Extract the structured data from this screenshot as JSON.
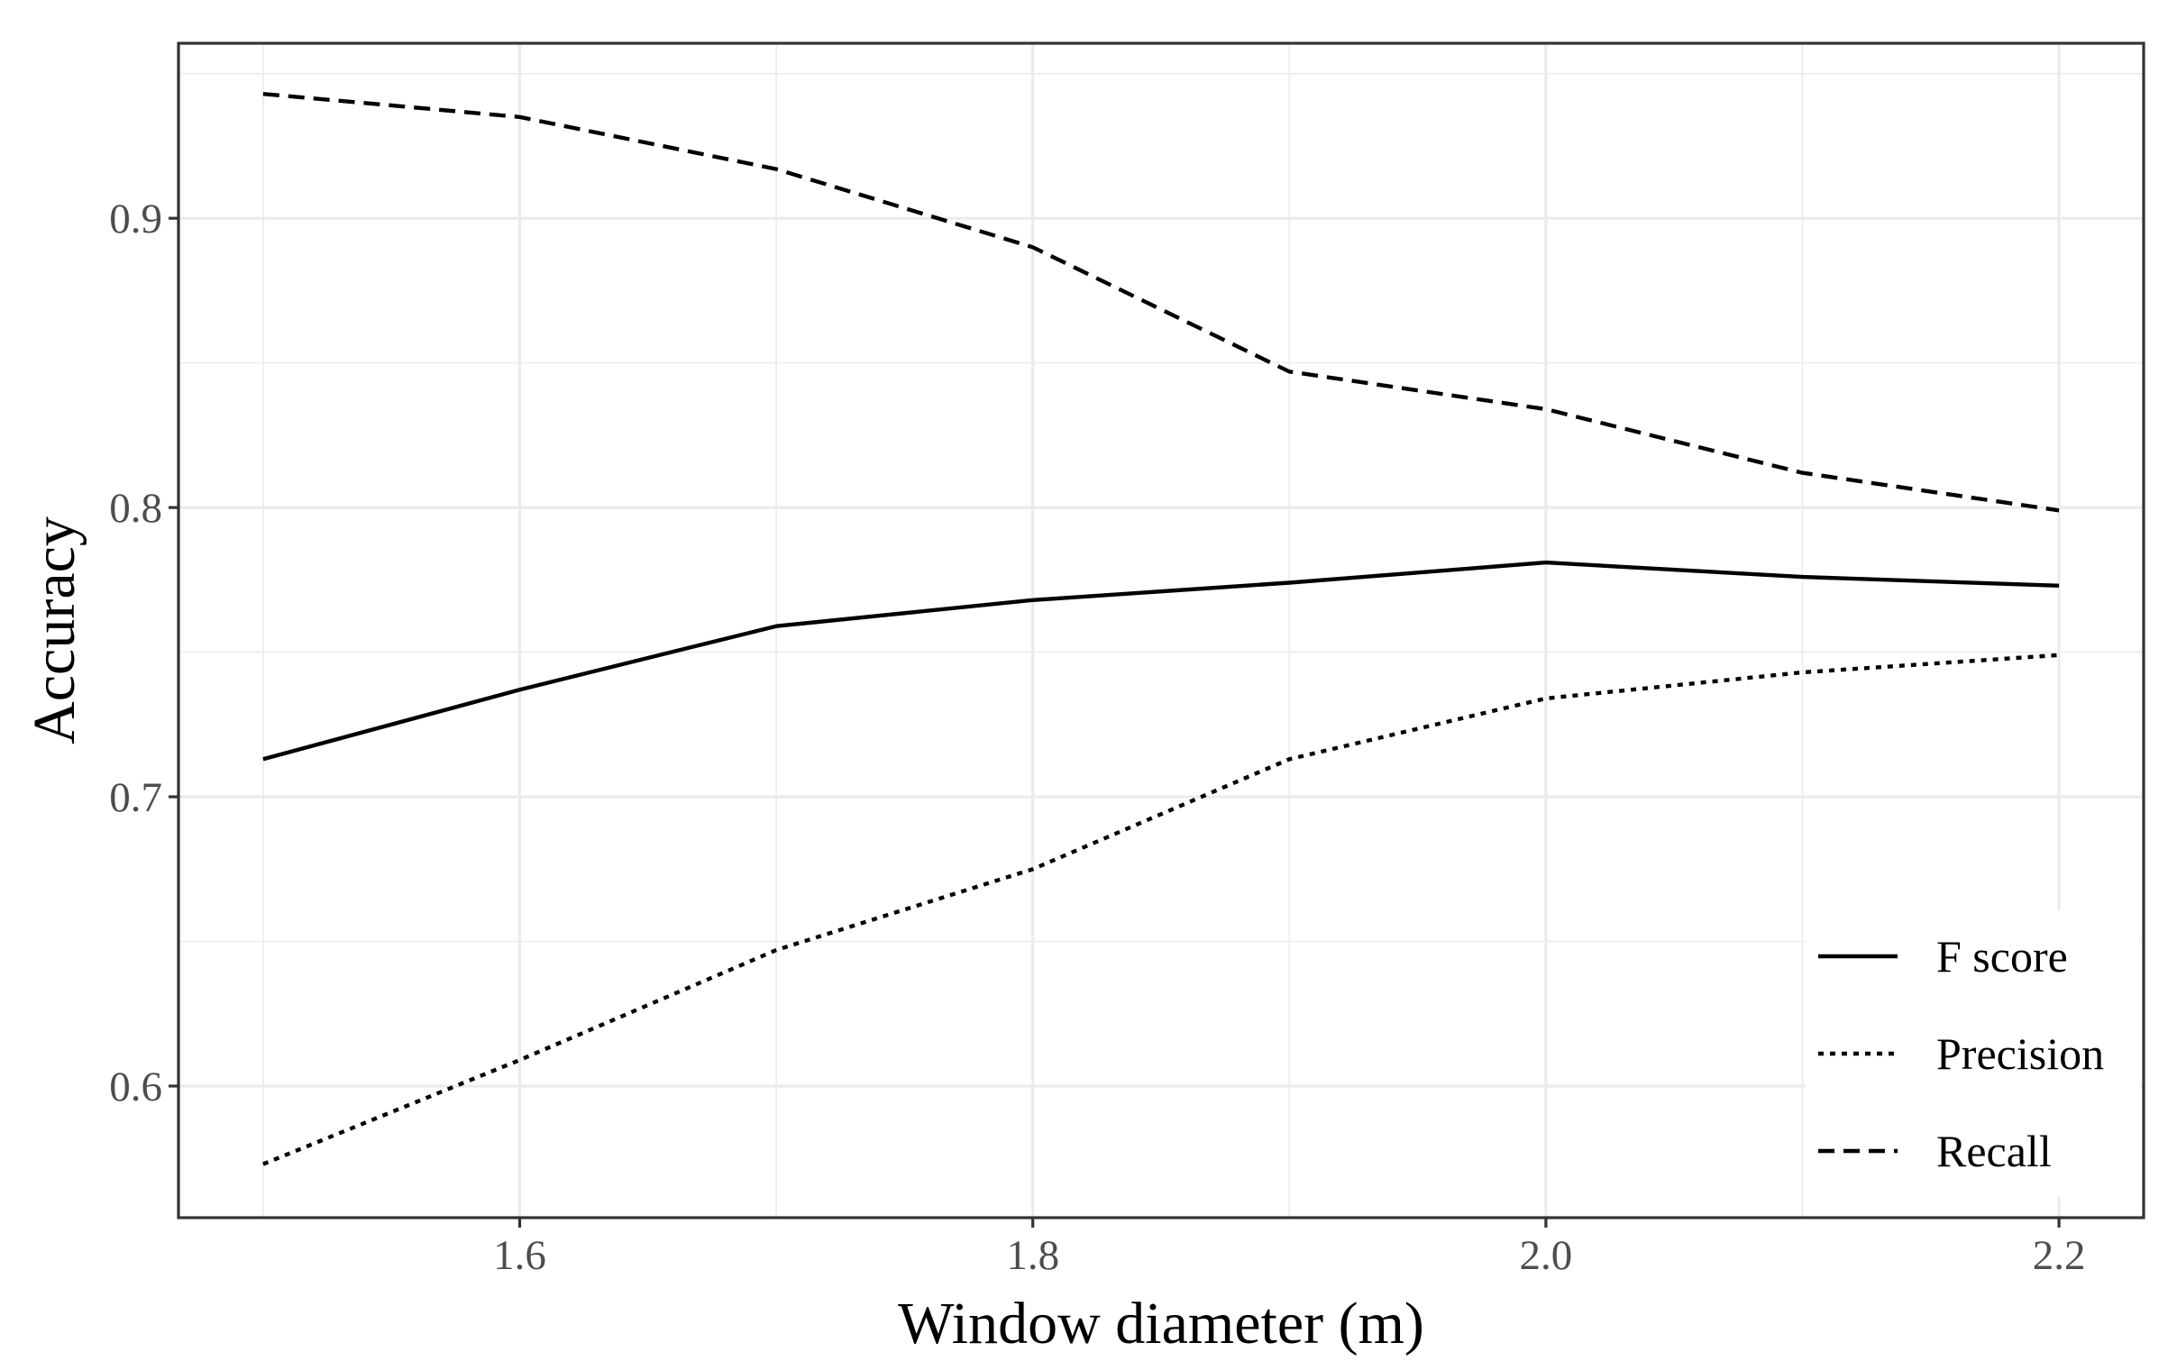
{
  "chart_data": {
    "type": "line",
    "xlabel": "Window diameter (m)",
    "ylabel": "Accuracy",
    "xlim": [
      1.467,
      2.233
    ],
    "ylim": [
      0.5545,
      0.9605
    ],
    "x_ticks": [
      1.6,
      1.8,
      2.0,
      2.2
    ],
    "x_tick_labels": [
      "1.6",
      "1.8",
      "2.0",
      "2.2"
    ],
    "x_minor_ticks": [
      1.5,
      1.7,
      1.9,
      2.1
    ],
    "y_ticks": [
      0.6,
      0.7,
      0.8,
      0.9
    ],
    "y_tick_labels": [
      "0.6",
      "0.7",
      "0.8",
      "0.9"
    ],
    "y_minor_ticks": [
      0.65,
      0.75,
      0.85,
      0.95
    ],
    "grid": true,
    "legend_position": "bottom-right inside",
    "x": [
      1.5,
      1.6,
      1.7,
      1.8,
      1.9,
      2.0,
      2.1,
      2.2
    ],
    "series": [
      {
        "name": "F score",
        "linetype": "solid",
        "values": [
          0.713,
          0.737,
          0.759,
          0.768,
          0.774,
          0.781,
          0.776,
          0.773
        ]
      },
      {
        "name": "Precision",
        "linetype": "dotted",
        "values": [
          0.573,
          0.609,
          0.647,
          0.675,
          0.713,
          0.734,
          0.743,
          0.749
        ]
      },
      {
        "name": "Recall",
        "linetype": "dashed",
        "values": [
          0.943,
          0.935,
          0.917,
          0.89,
          0.847,
          0.834,
          0.812,
          0.799
        ]
      }
    ],
    "colors": {
      "line": "#000000",
      "grid": "#ebebeb",
      "panel_border": "#333333",
      "tick_text": "#4d4d4d"
    }
  }
}
